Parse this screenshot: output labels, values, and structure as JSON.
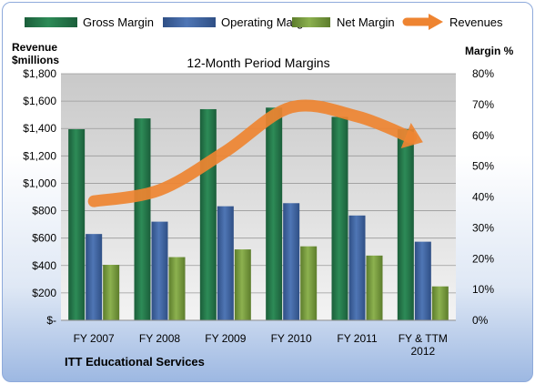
{
  "chart_data": {
    "type": "bar",
    "title": "12-Month Period Margins",
    "categories": [
      "FY 2007",
      "FY 2008",
      "FY 2009",
      "FY 2010",
      "FY 2011",
      "FY & TTM 2012"
    ],
    "series": [
      {
        "name": "Gross Margin",
        "axis": "right",
        "unit": "%",
        "values": [
          62,
          65.5,
          68.5,
          69,
          66,
          62
        ]
      },
      {
        "name": "Operating Margin",
        "axis": "right",
        "unit": "%",
        "values": [
          28,
          32,
          37,
          38,
          34,
          25.5
        ]
      },
      {
        "name": "Net Margin",
        "axis": "right",
        "unit": "%",
        "values": [
          18,
          20.5,
          23,
          24,
          21,
          11
        ]
      },
      {
        "name": "Revenues",
        "type": "line",
        "axis": "left",
        "unit": "$millions",
        "values": [
          869,
          951,
          1232,
          1555,
          1488,
          1300
        ]
      }
    ],
    "y_left": {
      "label_lines": [
        "Revenue",
        "$millions"
      ],
      "range": [
        0,
        1800
      ],
      "ticks": [
        "$-",
        "$200",
        "$400",
        "$600",
        "$800",
        "$1,000",
        "$1,200",
        "$1,400",
        "$1,600",
        "$1,800"
      ]
    },
    "y_right": {
      "label": "Margin %",
      "range": [
        0,
        80
      ],
      "ticks": [
        "0%",
        "10%",
        "20%",
        "30%",
        "40%",
        "50%",
        "60%",
        "70%",
        "80%"
      ]
    },
    "x_tick_lines": [
      [
        "FY 2007"
      ],
      [
        "FY 2008"
      ],
      [
        "FY 2009"
      ],
      [
        "FY 2010"
      ],
      [
        "FY 2011"
      ],
      [
        "FY & TTM",
        "2012"
      ]
    ],
    "footer": "ITT Educational Services",
    "legend_position": "top",
    "grid": true,
    "colors": {
      "gross": "#2d8b57",
      "gross_dark": "#1b5e3a",
      "operating": "#4f76b5",
      "operating_dark": "#2f4f85",
      "net": "#8cb14f",
      "net_dark": "#5d7d2c",
      "revenue": "#ee8431",
      "plot_bg_top": "#c9c9c9",
      "plot_bg_bottom": "#f3f3f3"
    }
  }
}
